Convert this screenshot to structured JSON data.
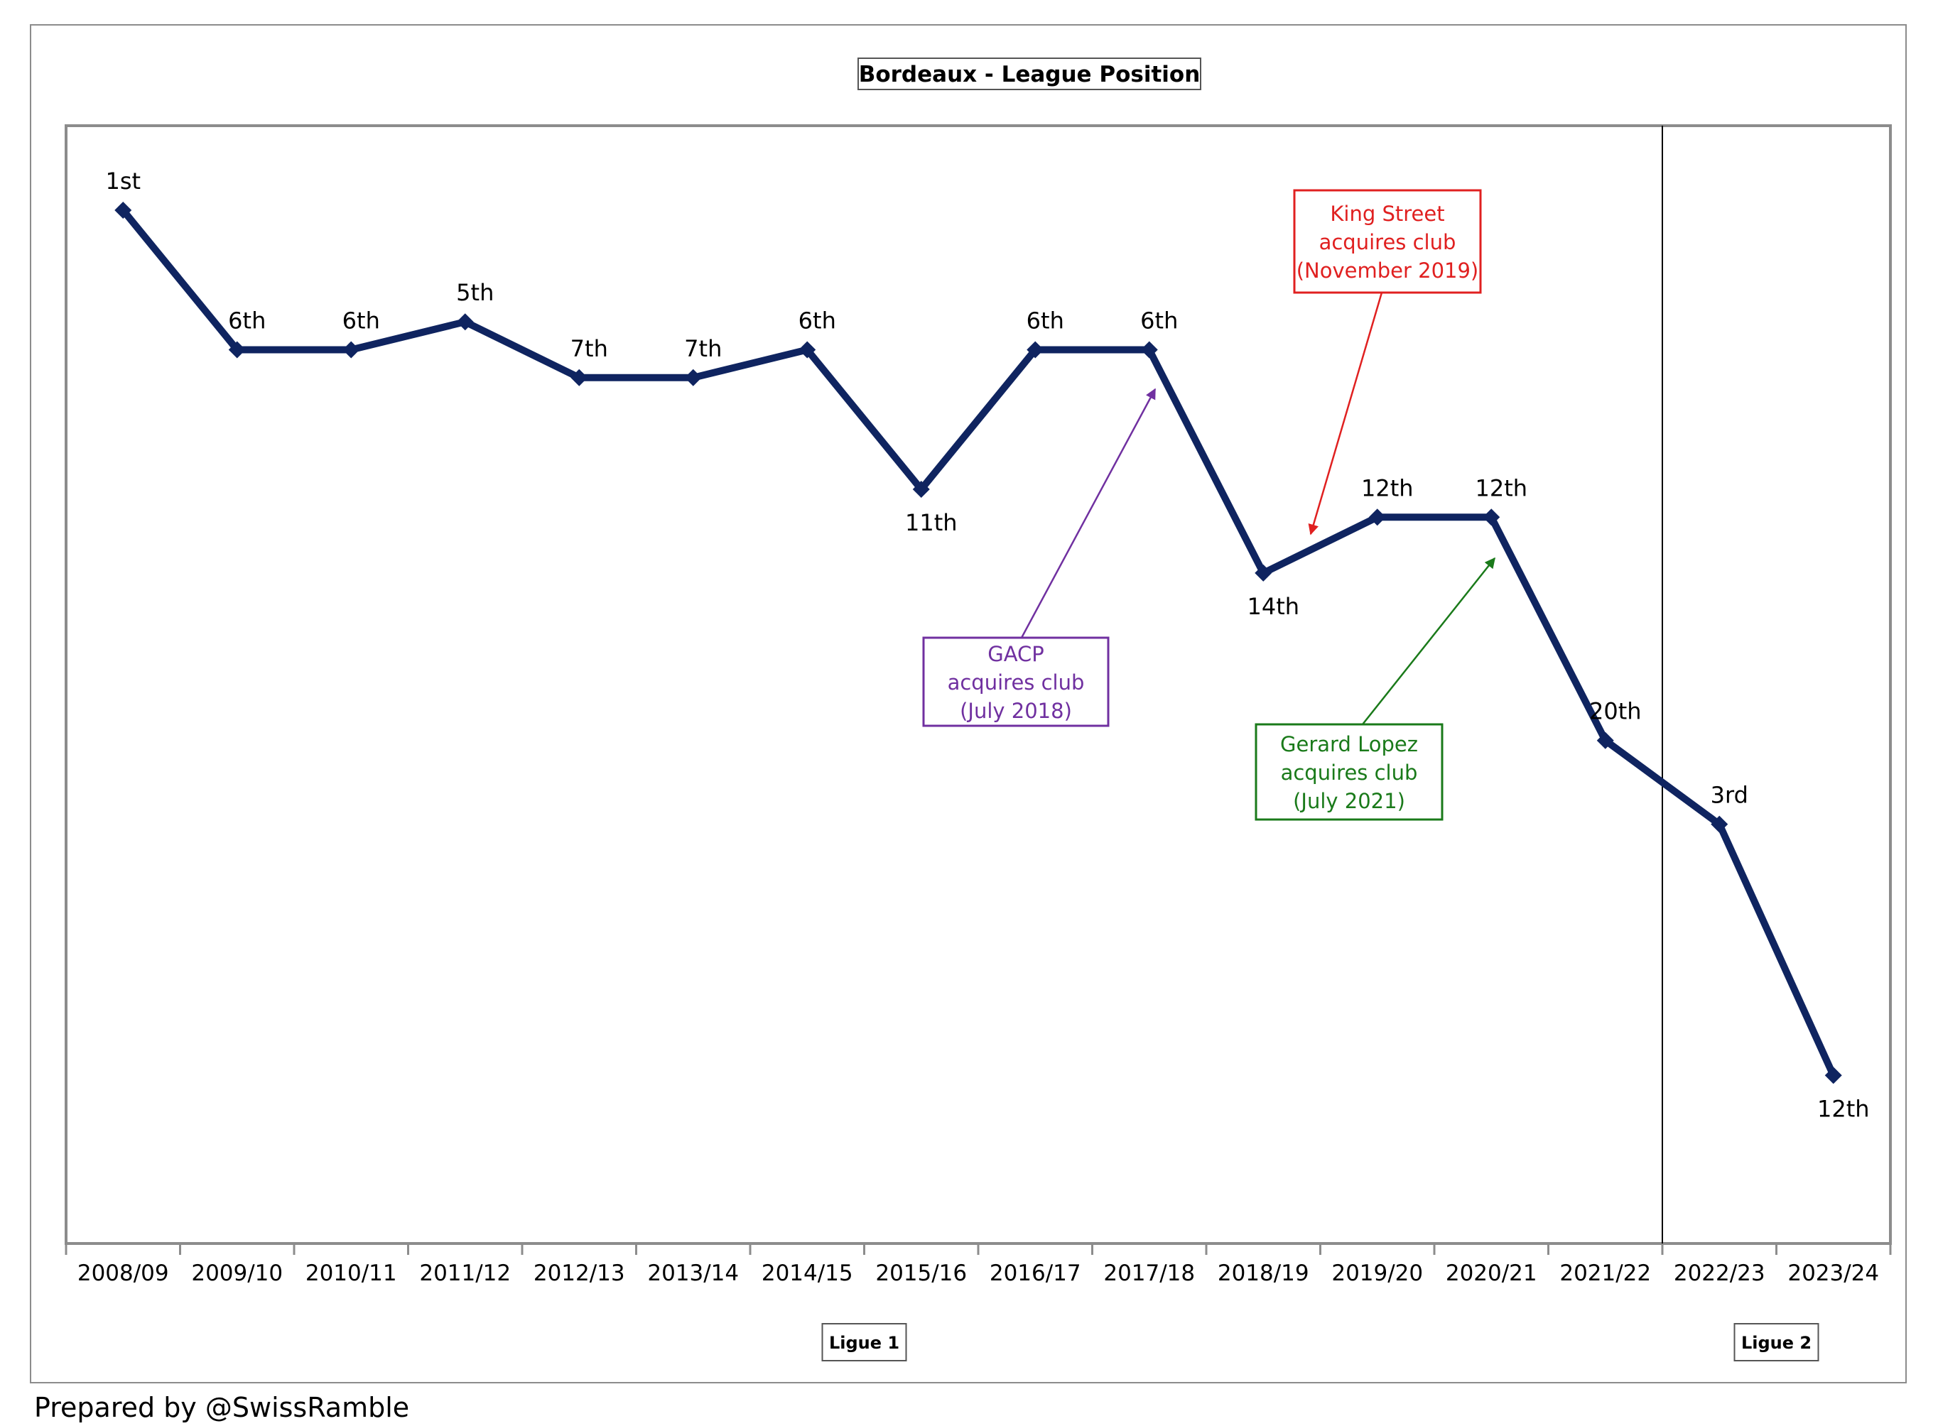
{
  "chart_data": {
    "type": "line",
    "title": "Bordeaux - League Position",
    "xlabel": "",
    "ylabel": "",
    "categories": [
      "2008/09",
      "2009/10",
      "2010/11",
      "2011/12",
      "2012/13",
      "2013/14",
      "2014/15",
      "2015/16",
      "2016/17",
      "2017/18",
      "2018/19",
      "2019/20",
      "2020/21",
      "2021/22",
      "2022/23",
      "2023/24"
    ],
    "series": [
      {
        "values": [
          1,
          6,
          6,
          5,
          7,
          7,
          6,
          11,
          6,
          6,
          14,
          12,
          12,
          20,
          3,
          12
        ],
        "labels": [
          "1st",
          "6th",
          "6th",
          "5th",
          "7th",
          "7th",
          "6th",
          "11th",
          "6th",
          "6th",
          "14th",
          "12th",
          "12th",
          "20th",
          "3rd",
          "12th"
        ],
        "combined_rank": [
          1,
          6,
          6,
          5,
          7,
          7,
          6,
          11,
          6,
          6,
          14,
          12,
          12,
          20,
          23,
          32
        ],
        "color": "#0f2460"
      }
    ],
    "ylim": [
      1,
      38
    ],
    "y_inverted": true,
    "y_axis_visible": false,
    "grid": false,
    "divider_between": [
      "2021/22",
      "2022/23"
    ],
    "league_labels": [
      {
        "text": "Ligue 1",
        "center_category": "2015/16",
        "center_offset": -0.5
      },
      {
        "text": "Ligue 2",
        "center_category": "2023/24",
        "center_offset": -0.5
      }
    ],
    "annotations": [
      {
        "lines": [
          "King Street",
          "acquires club",
          "(November 2019)"
        ],
        "color": "#e02020",
        "points_to": "between 2018/19 and 2019/20"
      },
      {
        "lines": [
          "GACP",
          "acquires club",
          "(July 2018)"
        ],
        "color": "#7030a0",
        "points_to": "2017/18"
      },
      {
        "lines": [
          "Gerard Lopez",
          "acquires club",
          "(July 2021)"
        ],
        "color": "#1a7a1a",
        "points_to": "2020/21"
      }
    ]
  },
  "footer": "Prepared by @SwissRamble"
}
